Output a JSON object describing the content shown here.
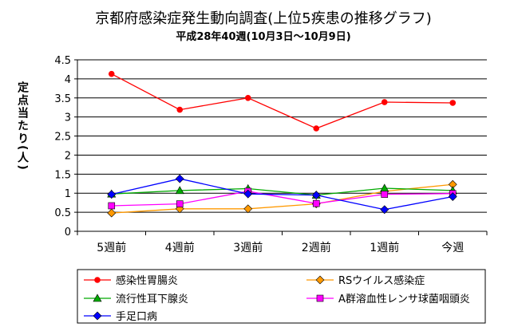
{
  "chart_data": {
    "type": "line",
    "title": "京都府感染症発生動向調査(上位5疾患の推移グラフ)",
    "subtitle": "平成28年40週(10月3日〜10月9日)",
    "xlabel": "",
    "ylabel": "定点当たり(人)",
    "categories": [
      "5週前",
      "4週前",
      "3週前",
      "2週前",
      "1週前",
      "今週"
    ],
    "ylim": [
      0,
      4.5
    ],
    "yticks": [
      "0",
      "0.5",
      "1",
      "1.5",
      "2",
      "2.5",
      "3",
      "3.5",
      "4",
      "4.5"
    ],
    "grid": true,
    "legend_position": "bottom",
    "series": [
      {
        "name": "感染性胃腸炎",
        "values": [
          4.13,
          3.19,
          3.5,
          2.7,
          3.39,
          3.37
        ],
        "color": "#ff0000",
        "marker": "circle"
      },
      {
        "name": "RSウイルス感染症",
        "values": [
          0.48,
          0.59,
          0.59,
          0.72,
          1.05,
          1.23
        ],
        "color": "#ff9900",
        "marker": "diamond"
      },
      {
        "name": "流行性耳下腺炎",
        "values": [
          0.98,
          1.07,
          1.12,
          0.95,
          1.13,
          1.07
        ],
        "color": "#00aa00",
        "marker": "triangle"
      },
      {
        "name": "A群溶血性レンサ球菌咽頭炎",
        "values": [
          0.67,
          0.72,
          1.05,
          0.73,
          0.97,
          0.99
        ],
        "color": "#ff00ff",
        "marker": "square"
      },
      {
        "name": "手足口病",
        "values": [
          0.97,
          1.38,
          0.98,
          0.95,
          0.57,
          0.91
        ],
        "color": "#0000ff",
        "marker": "diamond"
      }
    ]
  }
}
